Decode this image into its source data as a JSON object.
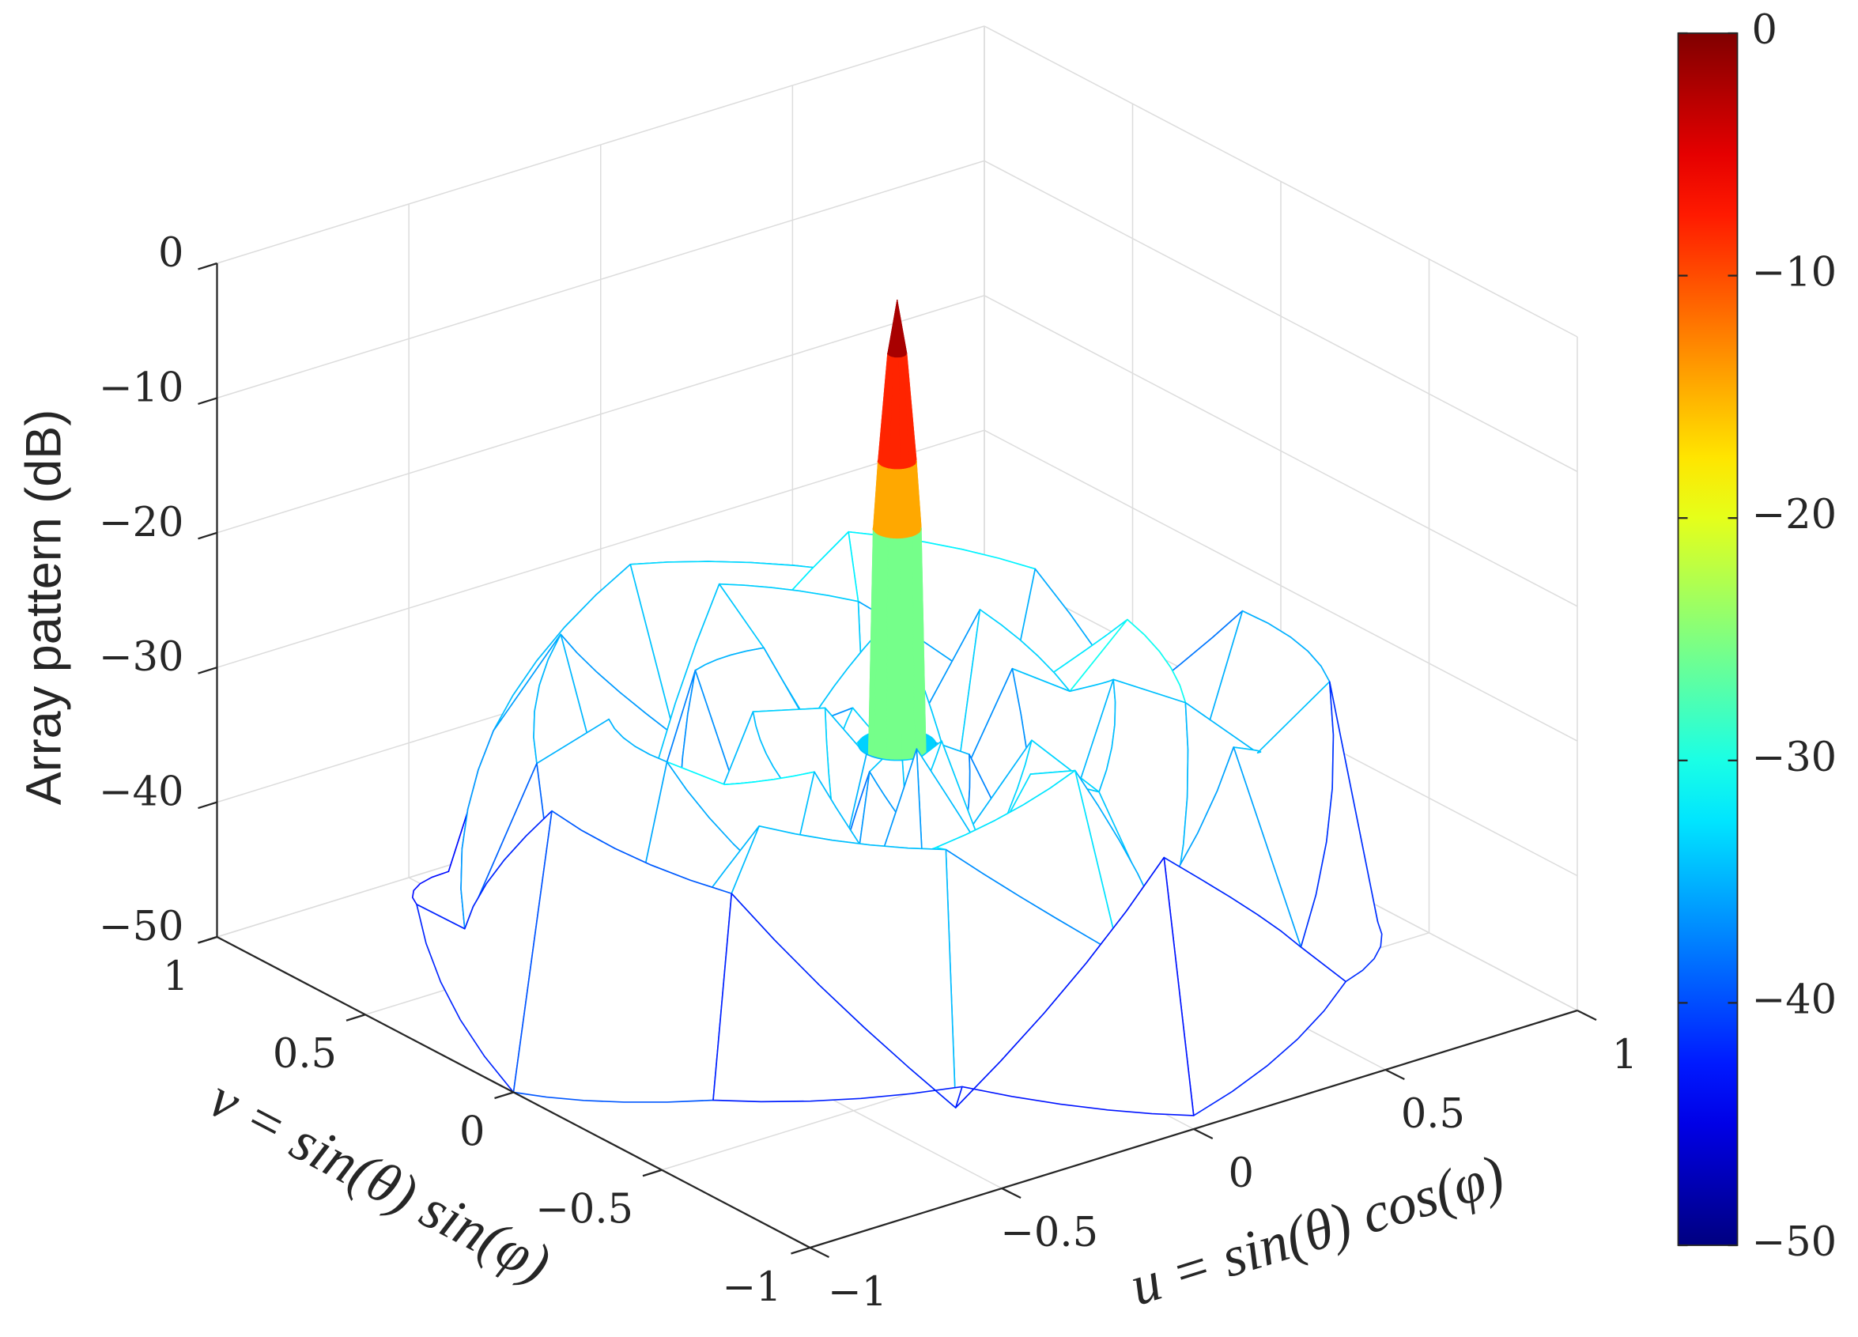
{
  "chart_data": {
    "type": "surface",
    "zlabel": "Array pattern (dB)",
    "xlabel": "u = sin(θ) cos(φ)",
    "ylabel": "v = sin(θ) sin(φ)",
    "r": [
      0,
      0.02,
      0.04,
      0.05,
      0.06,
      0.08,
      0.15,
      0.3,
      0.45,
      0.6,
      0.75,
      0.9,
      1.0
    ],
    "phi": [
      0,
      30,
      60,
      90,
      120,
      150,
      180,
      210,
      240,
      270,
      300,
      330
    ],
    "z": [
      [
        0,
        0,
        0,
        0,
        0,
        0,
        0,
        0,
        0,
        0,
        0,
        0
      ],
      [
        -4,
        -4,
        -4,
        -4,
        -4,
        -4,
        -4,
        -4,
        -4,
        -4,
        -4,
        -4
      ],
      [
        -12,
        -12,
        -12,
        -12,
        -12,
        -12,
        -12,
        -12,
        -12,
        -12,
        -12,
        -12
      ],
      [
        -17,
        -17,
        -17,
        -17,
        -17,
        -17,
        -17,
        -17,
        -17,
        -17,
        -17,
        -17
      ],
      [
        -34,
        -34,
        -34,
        -34,
        -34,
        -34,
        -34,
        -34,
        -34,
        -34,
        -34,
        -34
      ],
      [
        -33,
        -33,
        -33,
        -33,
        -33,
        -33,
        -33,
        -33,
        -33,
        -33,
        -33,
        -33
      ],
      [
        -38,
        -31,
        -40,
        -32,
        -36,
        -30,
        -41,
        -33,
        -37,
        -31,
        -39,
        -34
      ],
      [
        -30,
        -42,
        -29,
        -35,
        -44,
        -30,
        -33,
        -46,
        -29,
        -38,
        -31,
        -45
      ],
      [
        -33,
        -29,
        -45,
        -31,
        -30,
        -43,
        -32,
        -29,
        -41,
        -30,
        -34,
        -29
      ],
      [
        -29,
        -38,
        -31,
        -28,
        -47,
        -30,
        -29,
        -36,
        -32,
        -28,
        -44,
        -31
      ],
      [
        -44,
        -30,
        -28,
        -41,
        -29,
        -33,
        -48,
        -29,
        -30,
        -40,
        -29,
        -35
      ],
      [
        -31,
        -46,
        -33,
        -30,
        -37,
        -45,
        -30,
        -32,
        -47,
        -31,
        -43,
        -30
      ],
      [
        -47,
        -42,
        -49,
        -45,
        -48,
        -43,
        -50,
        -46,
        -44,
        -49,
        -45,
        -48
      ]
    ],
    "xlim": [
      -1,
      1
    ],
    "ylim": [
      -1,
      1
    ],
    "zlim": [
      -50,
      0
    ],
    "xticks": [
      {
        "value": -1,
        "label": "−1"
      },
      {
        "value": -0.5,
        "label": "−0.5"
      },
      0,
      0.5,
      1
    ],
    "yticks": [
      {
        "value": -1,
        "label": "−1"
      },
      {
        "value": -0.5,
        "label": "−0.5"
      },
      0,
      0.5,
      1
    ],
    "zticks": [
      {
        "value": -50,
        "label": "−50"
      },
      {
        "value": -40,
        "label": "−40"
      },
      {
        "value": -30,
        "label": "−30"
      },
      {
        "value": -20,
        "label": "−20"
      },
      {
        "value": -10,
        "label": "−10"
      },
      0
    ],
    "colormap": "jet",
    "clim": [
      -50,
      0
    ],
    "cticks": [
      {
        "value": -50,
        "label": "−50"
      },
      {
        "value": -40,
        "label": "−40"
      },
      {
        "value": -30,
        "label": "−30"
      },
      {
        "value": -20,
        "label": "−20"
      },
      {
        "value": -10,
        "label": "−10"
      },
      0
    ],
    "grid": true
  }
}
